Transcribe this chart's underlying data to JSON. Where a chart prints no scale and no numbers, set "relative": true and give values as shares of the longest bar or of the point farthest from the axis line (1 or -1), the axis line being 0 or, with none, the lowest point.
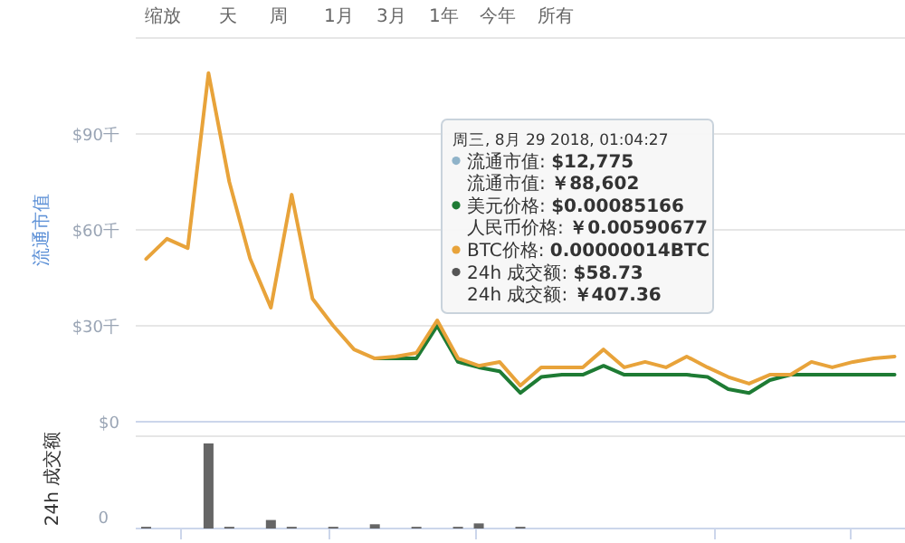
{
  "chart_data": [
    {
      "type": "line",
      "ylabel": "流通市值",
      "annotations": [
        "缩放",
        "天",
        "周",
        "1月",
        "3月",
        "1年",
        "今年",
        "所有",
        "周三, 8月 29 2018, 01:04:27",
        "流通市值: **$12,775**",
        "流通市值: **￥88,602**",
        "美元价格: **$0.00085166**",
        "人民币价格: **￥0.00590677**",
        "BTC价格: **0.00000014BTC**",
        "24h 成交额: **$58.73**",
        "24h 成交额: **￥407.36**"
      ],
      "categories": [
        null,
        null,
        null,
        null,
        null,
        null,
        null,
        null,
        null,
        null,
        null,
        null,
        null,
        null,
        null,
        null,
        null,
        null,
        null,
        null,
        null,
        null,
        null,
        null,
        null,
        null,
        null,
        null,
        null,
        null,
        null,
        null,
        null,
        null,
        null,
        null,
        null
      ],
      "series": [
        {
          "color": "#1e7b34",
          "values": [
            null,
            null,
            null,
            null,
            null,
            null,
            null,
            null,
            null,
            null,
            null,
            19.8,
            19.8,
            19.8,
            30,
            18.7,
            17,
            15.8,
            9,
            14,
            14.7,
            14.7,
            17.5,
            14.7,
            14.7,
            14.7,
            14.7,
            14,
            10.2,
            9,
            13,
            14.7,
            14.7,
            14.7,
            14.7,
            14.7,
            14.7
          ]
        },
        {
          "color": "#e8a33a",
          "values": [
            50.9,
            57.2,
            54.3,
            109,
            75,
            51,
            35.7,
            71,
            38.5,
            30,
            22.6,
            19.8,
            20.4,
            21.5,
            31.7,
            19.8,
            17.5,
            18.7,
            11.3,
            17,
            17,
            17,
            22.6,
            17,
            18.7,
            17,
            20.4,
            17,
            14,
            11.9,
            14.7,
            14.7,
            18.7,
            17,
            18.7,
            19.8,
            20.4
          ]
        }
      ],
      "ylim": [
        0,
        120
      ],
      "yticks": [
        {
          "value": 0,
          "label": "$0"
        },
        {
          "value": 30,
          "label": "$30千"
        },
        {
          "value": 60,
          "label": "$60千"
        },
        {
          "value": 90,
          "label": "$90千"
        },
        {
          "value": 120,
          "label": null
        }
      ],
      "grid": "y",
      "tick_labels": "y"
    },
    {
      "type": "bar",
      "ylabel": "24h 成交额",
      "annotations": [
        "0"
      ],
      "relative": true,
      "tick_labels": false,
      "color": "#666666",
      "categories": [
        null,
        null,
        null,
        null,
        null,
        null,
        null,
        null,
        null,
        null,
        null,
        null,
        null,
        null,
        null,
        null,
        null,
        null,
        null,
        null,
        null,
        null,
        null,
        null,
        null,
        null,
        null,
        null,
        null,
        null,
        null,
        null,
        null,
        null,
        null,
        null,
        null
      ],
      "values": [
        0.02,
        null,
        null,
        1,
        0.02,
        null,
        0.1,
        0.02,
        null,
        0.02,
        null,
        0.05,
        null,
        0.02,
        null,
        0.02,
        0.06,
        null,
        0.02,
        null,
        null,
        null,
        null,
        null,
        null,
        null,
        null,
        null,
        null,
        null,
        null,
        null,
        null,
        null,
        null,
        null,
        null
      ]
    }
  ]
}
